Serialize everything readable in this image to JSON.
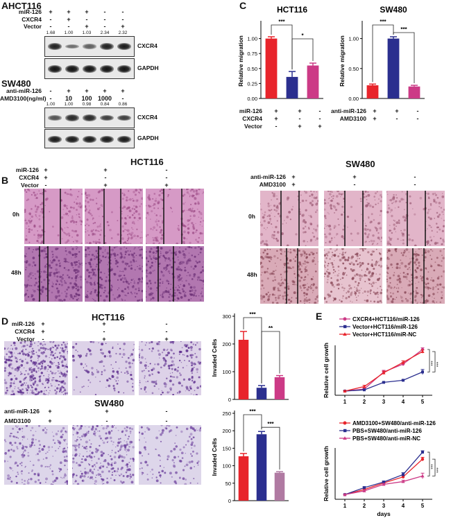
{
  "panel_A": {
    "letter": "A",
    "hct116": {
      "title": "HCT116",
      "row_labels": [
        "miR-126",
        "CXCR4",
        "Vector"
      ],
      "signs": [
        [
          "+",
          "+",
          "+",
          "-",
          "-"
        ],
        [
          "-",
          "+",
          "-",
          "-",
          "-"
        ],
        [
          "-",
          "-",
          "+",
          "-",
          "+"
        ]
      ],
      "ratios": [
        "1.68",
        "1.00",
        "1.03",
        "2.34",
        "2.32"
      ],
      "band_intensity": [
        0.9,
        0.35,
        0.45,
        0.9,
        0.95
      ],
      "target": "CXCR4",
      "loading": "GAPDH"
    },
    "sw480": {
      "title": "SW480",
      "row_labels": [
        "anti-miR-126",
        "AMD3100(ng/ml)"
      ],
      "signs": [
        [
          "-",
          "+",
          "+",
          "+",
          "+"
        ],
        [
          "-",
          "10",
          "100",
          "1000",
          "-"
        ]
      ],
      "ratios": [
        "1.00",
        "1.00",
        "0.98",
        "0.84",
        "0.86"
      ],
      "band_intensity": [
        0.55,
        0.85,
        0.85,
        0.7,
        0.7
      ],
      "target": "CXCR4",
      "loading": "GAPDH"
    }
  },
  "panel_B": {
    "letter": "B",
    "hct116": {
      "title": "HCT116",
      "row_labels": [
        "miR-126",
        "CXCR4",
        "Vector"
      ],
      "signs": [
        [
          "+",
          "+",
          "-"
        ],
        [
          "+",
          "-",
          "-"
        ],
        [
          "-",
          "+",
          "+"
        ]
      ],
      "timepoints": [
        "0h",
        "48h"
      ]
    },
    "sw480": {
      "title": "SW480",
      "row_labels": [
        "anti-miR-126",
        "AMD3100"
      ],
      "signs": [
        [
          "+",
          "+",
          "-"
        ],
        [
          "+",
          "-",
          "-"
        ]
      ],
      "timepoints": [
        "0h",
        "48h"
      ]
    }
  },
  "panel_C": {
    "letter": "C",
    "hct116_labels": [
      "miR-126",
      "CXCR4",
      "Vector"
    ],
    "hct116_signs": [
      [
        "+",
        "+",
        "-"
      ],
      [
        "+",
        "-",
        "-"
      ],
      [
        "-",
        "+",
        "+"
      ]
    ],
    "sw480_labels": [
      "anti-miR-126",
      "AMD3100"
    ],
    "sw480_signs": [
      [
        "+",
        "+",
        "-"
      ],
      [
        "+",
        "-",
        "-"
      ]
    ]
  },
  "panel_D": {
    "letter": "D",
    "hct116": {
      "title": "HCT116",
      "row_labels": [
        "miR-126",
        "CXCR4",
        "Vector"
      ],
      "signs": [
        [
          "+",
          "+",
          "-"
        ],
        [
          "+",
          "-",
          "-"
        ],
        [
          "-",
          "+",
          "+"
        ]
      ]
    },
    "sw480": {
      "title": "SW480",
      "row_labels": [
        "anti-miR-126",
        "AMD3100"
      ],
      "signs": [
        [
          "+",
          "+",
          "-"
        ],
        [
          "+",
          "-",
          "-"
        ]
      ]
    }
  },
  "panel_E": {
    "letter": "E"
  },
  "colors": {
    "red": "#e8242b",
    "navy": "#2b2f8f",
    "pink": "#cc3a86",
    "mauve": "#b07aa2"
  },
  "chart_data": [
    {
      "id": "C-HCT116",
      "type": "bar",
      "title": "HCT116",
      "ylabel": "Relative migration",
      "ylim": [
        0,
        1.25
      ],
      "yticks": [
        "0.00",
        "0.25",
        "0.50",
        "0.75",
        "1.00"
      ],
      "categories": [
        "miR-126+CXCR4",
        "miR-126+Vector",
        "Vector"
      ],
      "values": [
        1.0,
        0.36,
        0.55
      ],
      "errors": [
        0.03,
        0.09,
        0.04
      ],
      "colors": [
        "#e8242b",
        "#2b2f8f",
        "#cc3a86"
      ],
      "significance": [
        {
          "from": 0,
          "to": 1,
          "label": "***"
        },
        {
          "from": 1,
          "to": 2,
          "label": "*"
        }
      ]
    },
    {
      "id": "C-SW480",
      "type": "bar",
      "title": "SW480",
      "ylabel": "Relative migration",
      "ylim": [
        0,
        1.25
      ],
      "yticks": [
        "0.00",
        "0.50",
        "1.00"
      ],
      "categories": [
        "anti-miR-126+AMD3100",
        "anti-miR-126",
        "control"
      ],
      "values": [
        0.22,
        1.0,
        0.2
      ],
      "errors": [
        0.02,
        0.03,
        0.02
      ],
      "colors": [
        "#e8242b",
        "#2b2f8f",
        "#cc3a86"
      ],
      "significance": [
        {
          "from": 0,
          "to": 1,
          "label": "***"
        },
        {
          "from": 1,
          "to": 2,
          "label": "***"
        }
      ]
    },
    {
      "id": "D-HCT116",
      "type": "bar",
      "ylabel": "Invaded Cells",
      "ylim": [
        0,
        300
      ],
      "yticks": [
        "0",
        "100",
        "200",
        "300"
      ],
      "categories": [
        "miR-126+CXCR4",
        "miR-126+Vector",
        "Vector"
      ],
      "values": [
        215,
        42,
        80
      ],
      "errors": [
        30,
        8,
        6
      ],
      "colors": [
        "#e8242b",
        "#2b2f8f",
        "#cc3a86"
      ],
      "significance": [
        {
          "from": 0,
          "to": 1,
          "label": "***"
        },
        {
          "from": 1,
          "to": 2,
          "label": "**"
        }
      ]
    },
    {
      "id": "D-SW480",
      "type": "bar",
      "ylabel": "Invaded Cells",
      "ylim": [
        0,
        250
      ],
      "yticks": [
        "0",
        "50",
        "100",
        "150",
        "200",
        "250"
      ],
      "categories": [
        "anti-miR-126+AMD3100",
        "anti-miR-126",
        "control"
      ],
      "values": [
        127,
        190,
        80
      ],
      "errors": [
        8,
        8,
        3
      ],
      "colors": [
        "#e8242b",
        "#2b2f8f",
        "#b07aa2"
      ],
      "significance": [
        {
          "from": 0,
          "to": 1,
          "label": "***"
        },
        {
          "from": 1,
          "to": 2,
          "label": "***"
        }
      ]
    },
    {
      "id": "E-HCT116",
      "type": "line",
      "ylabel": "Relative cell growth",
      "xlabel": "",
      "x": [
        1,
        2,
        3,
        4,
        5
      ],
      "xlim": [
        0.5,
        5.5
      ],
      "ylim": [
        0,
        12
      ],
      "series": [
        {
          "name": "CXCR4+HCT116/miR-126",
          "values": [
            1,
            1.5,
            5.6,
            7.5,
            11
          ],
          "errors": [
            0.1,
            0.2,
            0.4,
            0.4,
            0.4
          ],
          "color": "#cc3a86",
          "marker": "circle"
        },
        {
          "name": "Vector+HCT116/miR-126",
          "values": [
            1,
            1.3,
            3.1,
            3.6,
            5.6
          ],
          "errors": [
            0.1,
            0.1,
            0.1,
            0.1,
            0.6
          ],
          "color": "#2b2f8f",
          "marker": "square"
        },
        {
          "name": "Vector+HCT116/miR-NC",
          "values": [
            1,
            2.1,
            5.4,
            7.9,
            10.5
          ],
          "errors": [
            0.1,
            0.3,
            0.4,
            0.4,
            0.4
          ],
          "color": "#e8242b",
          "marker": "triangle"
        }
      ],
      "significance": [
        "***",
        "***"
      ]
    },
    {
      "id": "E-SW480",
      "type": "line",
      "ylabel": "Relative cell growth",
      "xlabel": "days",
      "x": [
        1,
        2,
        3,
        4,
        5
      ],
      "xlim": [
        0.5,
        5.5
      ],
      "ylim": [
        0,
        11
      ],
      "series": [
        {
          "name": "AMD3100+SW480/anti-miR-126",
          "values": [
            1,
            2.1,
            3.5,
            4.8,
            8.6
          ],
          "errors": [
            0.1,
            0.2,
            0.2,
            0.3,
            0.4
          ],
          "color": "#e8242b",
          "marker": "circle"
        },
        {
          "name": "PBS+SW480/anti-miR-126",
          "values": [
            1,
            2.5,
            3.7,
            5.3,
            10.1
          ],
          "errors": [
            0.1,
            0.2,
            0.2,
            0.4,
            0.3
          ],
          "color": "#2b2f8f",
          "marker": "square"
        },
        {
          "name": "PBS+SW480/anti-miR-NC",
          "values": [
            1,
            1.8,
            3.2,
            3.8,
            5.0
          ],
          "errors": [
            0.1,
            0.2,
            0.2,
            0.3,
            0.6
          ],
          "color": "#cc3a86",
          "marker": "triangle"
        }
      ],
      "significance": [
        "***",
        "***"
      ]
    }
  ]
}
